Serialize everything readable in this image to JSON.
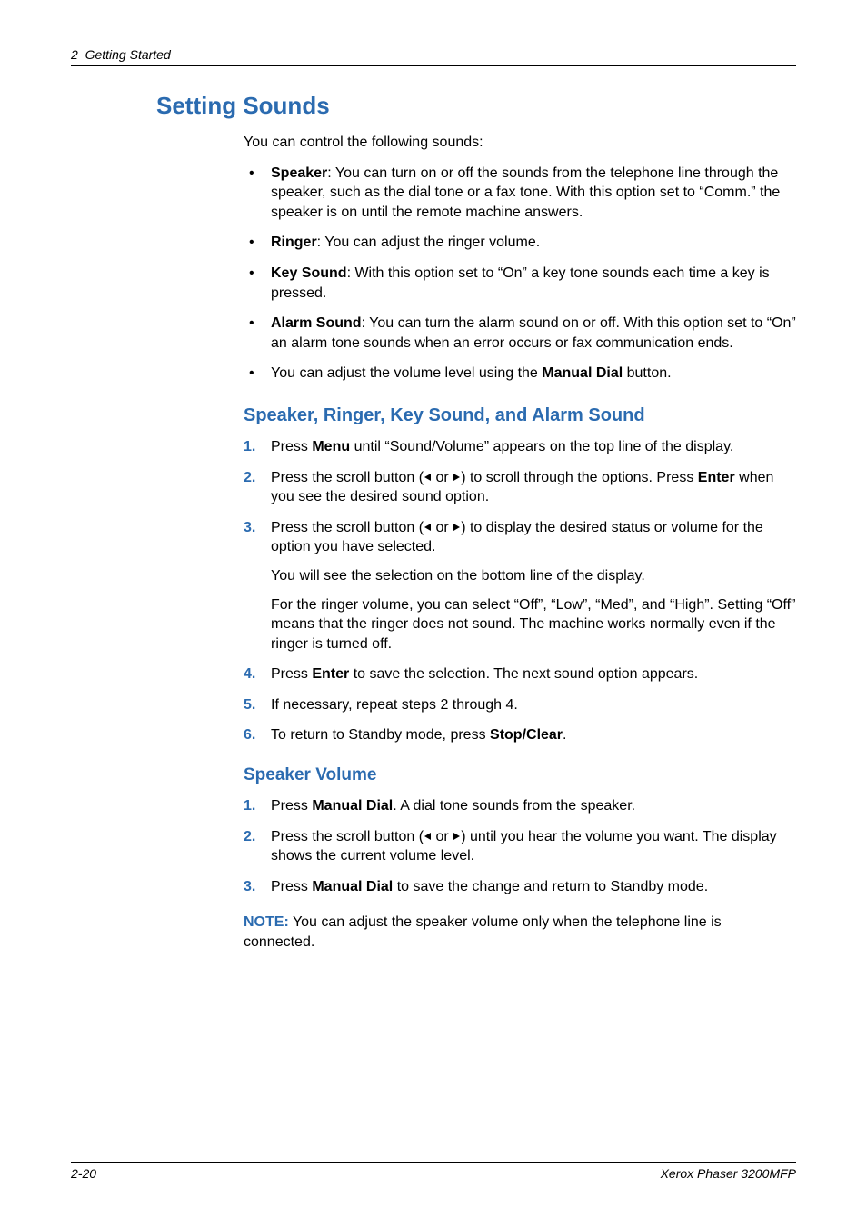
{
  "header": {
    "chapter_num": "2",
    "chapter_title": "Getting Started"
  },
  "title": "Setting Sounds",
  "intro": "You can control the following sounds:",
  "bullets": [
    {
      "bold": "Speaker",
      "rest": ": You can turn on or off the sounds from the telephone line through the speaker, such as the dial tone or a fax tone. With this option set to “Comm.” the speaker is on until the remote machine answers."
    },
    {
      "bold": "Ringer",
      "rest": ": You can adjust the ringer volume."
    },
    {
      "bold": "Key Sound",
      "rest": ": With this option set to “On” a key tone sounds each time a key is pressed."
    },
    {
      "bold": "Alarm Sound",
      "rest": ": You can turn the alarm sound on or off. With this option set to “On” an alarm tone sounds when an error occurs or fax communication ends."
    },
    {
      "pre": "You can adjust the volume level using the ",
      "bold": "Manual Dial",
      "rest": " button."
    }
  ],
  "sectionA": {
    "title": "Speaker, Ringer, Key Sound, and Alarm Sound",
    "steps": [
      {
        "parts": [
          {
            "t": "Press "
          },
          {
            "b": "Menu"
          },
          {
            "t": " until “Sound/Volume” appears on the top line of the display."
          }
        ]
      },
      {
        "parts": [
          {
            "t": "Press the scroll button ("
          },
          {
            "arrows": true
          },
          {
            "t": ") to scroll through the options. Press "
          },
          {
            "b": "Enter"
          },
          {
            "t": " when you see the desired sound option."
          }
        ]
      },
      {
        "parts": [
          {
            "t": "Press the scroll button ("
          },
          {
            "arrows": true
          },
          {
            "t": ") to display the desired status or volume for the option you have selected."
          }
        ],
        "subs": [
          "You will see the selection on the bottom line of the display.",
          "For the ringer volume, you can select “Off”, “Low”, “Med”, and “High”. Setting “Off” means that the ringer does not sound. The machine works normally even if the ringer is turned off."
        ]
      },
      {
        "parts": [
          {
            "t": "Press "
          },
          {
            "b": "Enter"
          },
          {
            "t": " to save the selection. The next sound option appears."
          }
        ]
      },
      {
        "parts": [
          {
            "t": "If necessary, repeat steps 2 through 4."
          }
        ]
      },
      {
        "parts": [
          {
            "t": "To return to Standby mode, press "
          },
          {
            "b": "Stop/Clear"
          },
          {
            "t": "."
          }
        ]
      }
    ]
  },
  "sectionB": {
    "title": "Speaker Volume",
    "steps": [
      {
        "parts": [
          {
            "t": "Press "
          },
          {
            "b": "Manual Dial"
          },
          {
            "t": ". A dial tone sounds from the speaker."
          }
        ]
      },
      {
        "parts": [
          {
            "t": "Press the scroll button ("
          },
          {
            "arrows": true
          },
          {
            "t": ") until you hear the volume you want. The display shows the current volume level."
          }
        ]
      },
      {
        "parts": [
          {
            "t": "Press "
          },
          {
            "b": "Manual Dial"
          },
          {
            "t": " to save the change and return to Standby mode."
          }
        ]
      }
    ],
    "note_label": "NOTE:",
    "note_text": " You can adjust the speaker volume only when the telephone line is connected."
  },
  "footer": {
    "page_num": "2-20",
    "product": "Xerox Phaser 3200MFP"
  },
  "style": {
    "accent": "#2b6bb0",
    "text": "#000000",
    "body_fontsize": 16,
    "title_fontsize": 26,
    "sub_fontsize": 20,
    "header_fontsize": 14,
    "arrow_word": " or "
  }
}
